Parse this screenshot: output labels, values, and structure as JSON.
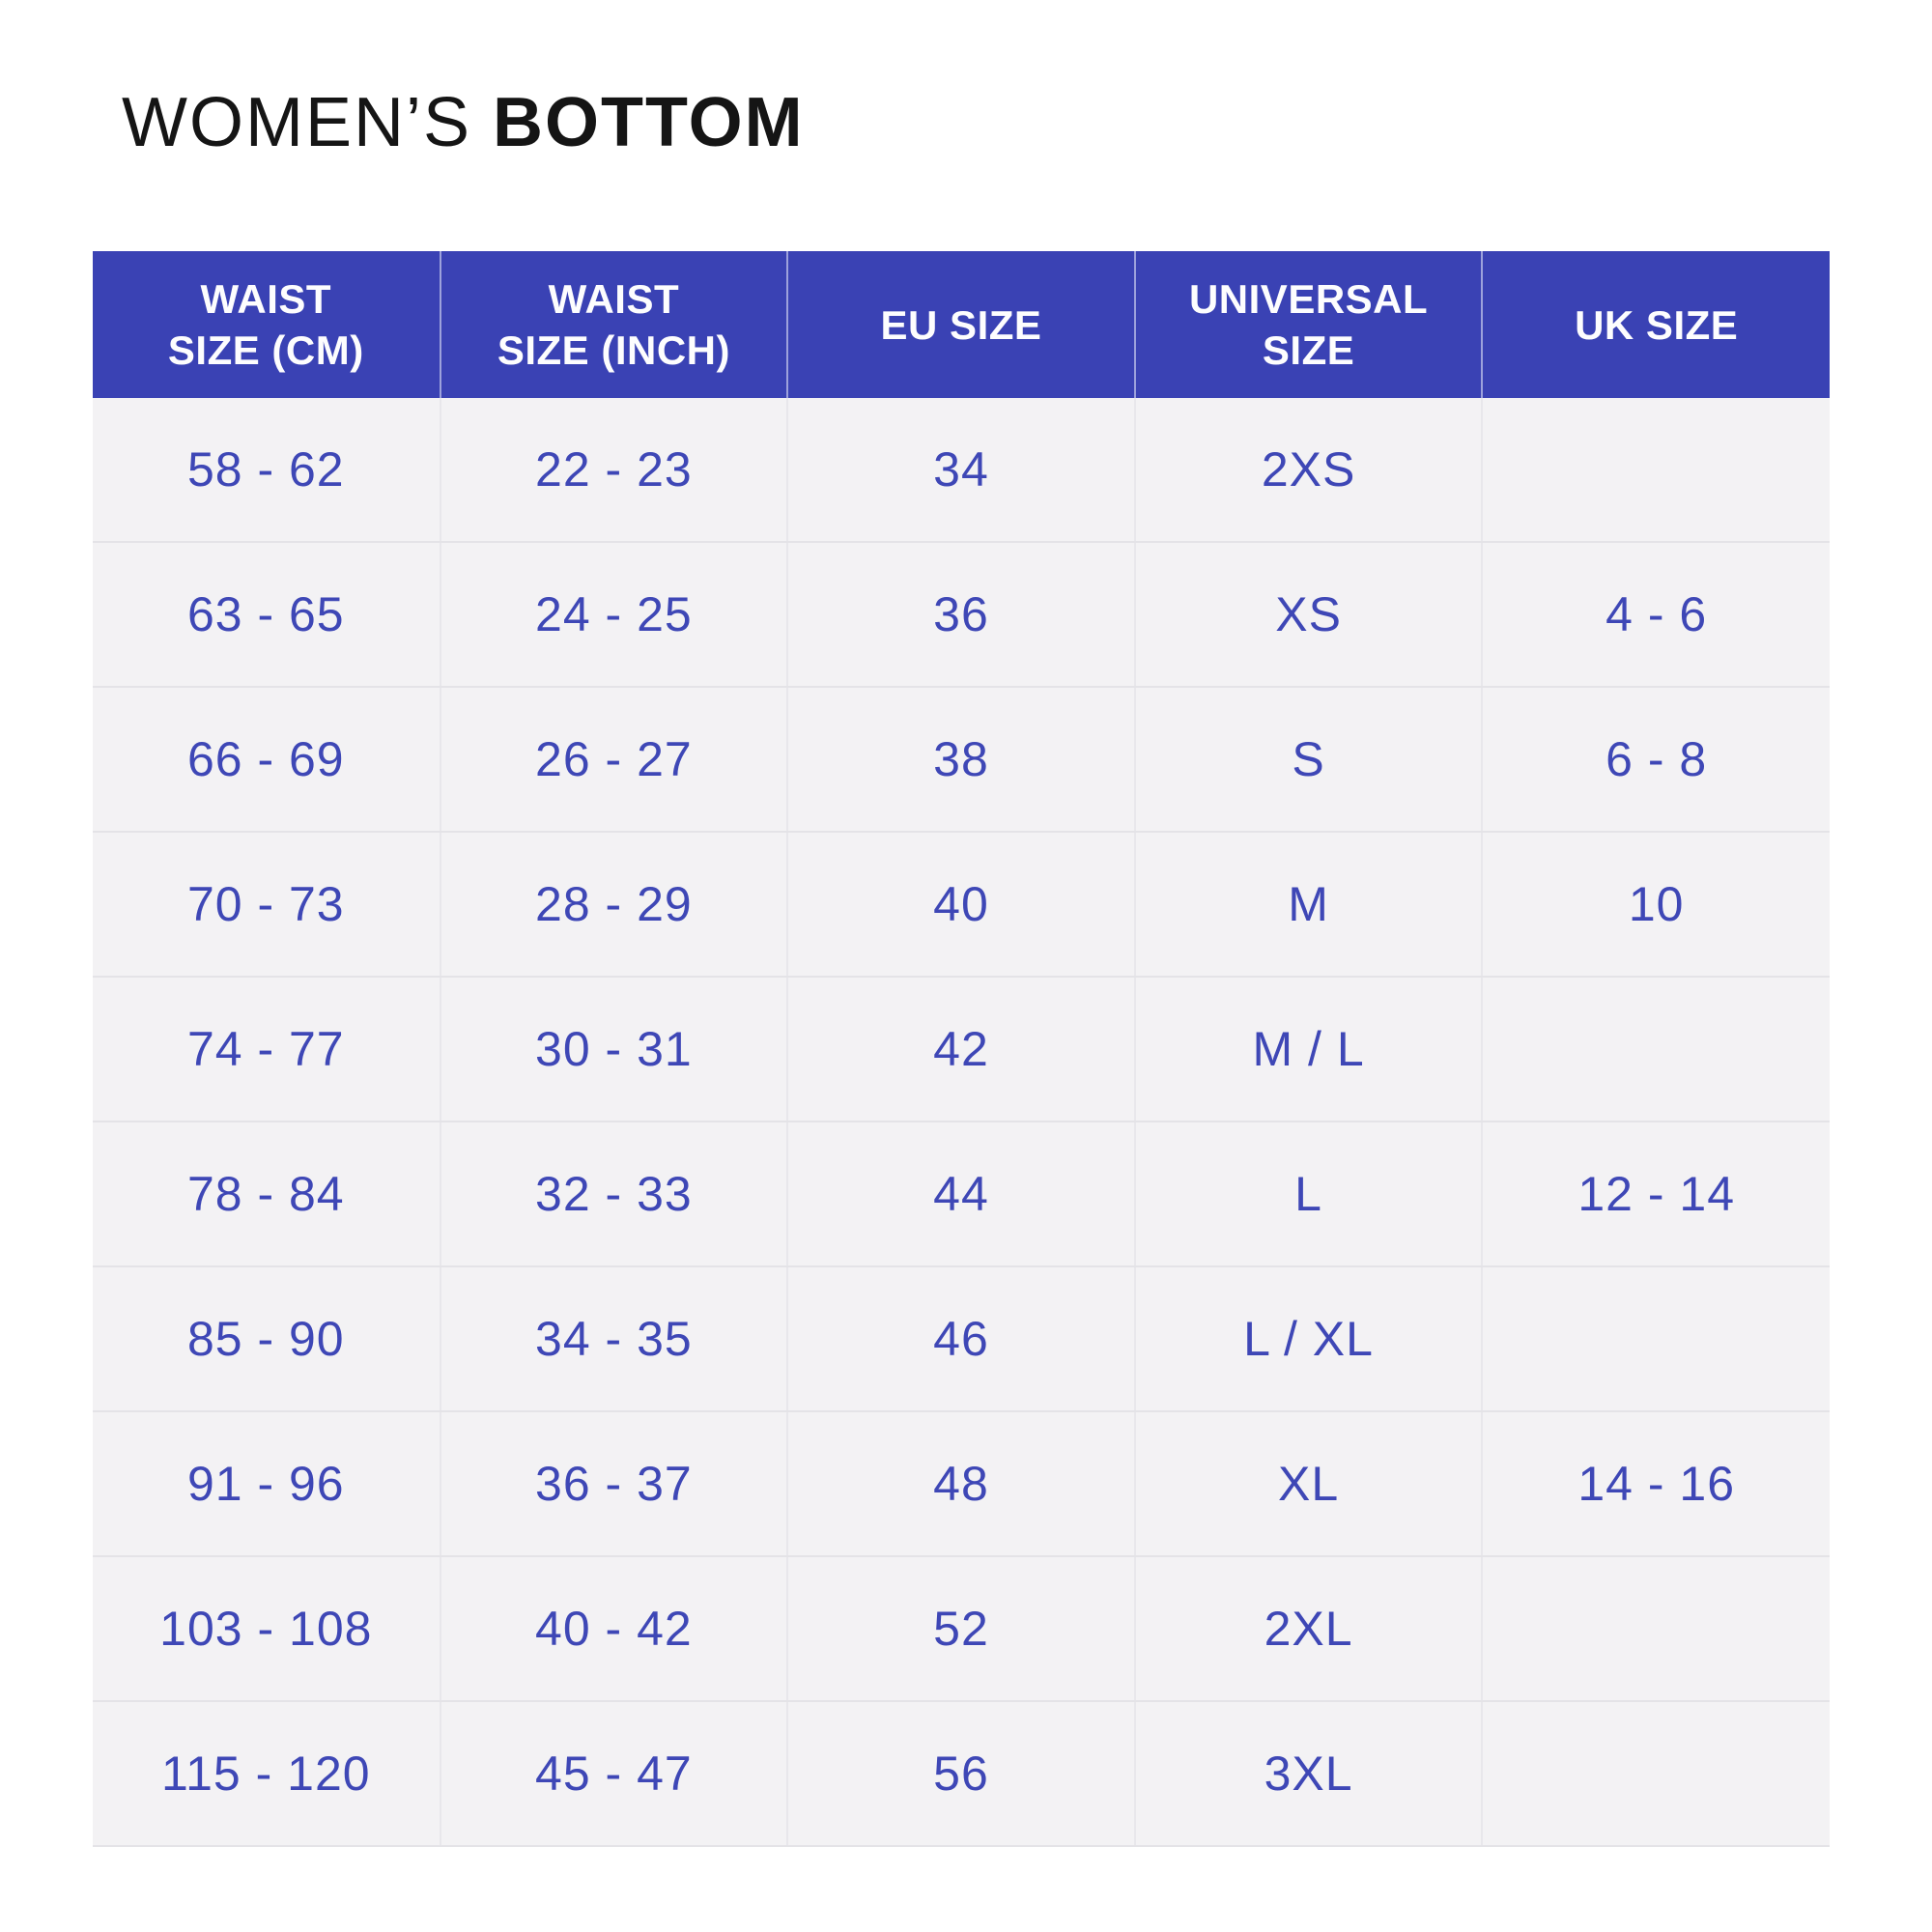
{
  "title": {
    "regular": "WOMEN’S",
    "bold": "BOTTOM"
  },
  "colors": {
    "page-bg": "#ffffff",
    "title-text": "#151515",
    "header-bg": "#3a42b4",
    "header-text": "#fdfdfe",
    "header-divider": "#9da2dc",
    "cell-bg": "#f3f2f4",
    "cell-text": "#3e47b6",
    "grid-vertical": "#e8e7eb",
    "grid-horizontal": "#e4e3e7"
  },
  "chart_data": {
    "type": "table",
    "title": "WOMEN’S BOTTOM",
    "columns": [
      "WAIST SIZE (CM)",
      "WAIST SIZE (INCH)",
      "EU SIZE",
      "UNIVERSAL SIZE",
      "UK SIZE"
    ],
    "header_lines": [
      "WAIST\nSIZE (CM)",
      "WAIST\nSIZE (INCH)",
      "EU SIZE",
      "UNIVERSAL\nSIZE",
      "UK SIZE"
    ],
    "rows": [
      [
        "58 - 62",
        "22 - 23",
        "34",
        "2XS",
        ""
      ],
      [
        "63 - 65",
        "24 - 25",
        "36",
        "XS",
        "4 - 6"
      ],
      [
        "66 - 69",
        "26 - 27",
        "38",
        "S",
        "6 - 8"
      ],
      [
        "70 - 73",
        "28 - 29",
        "40",
        "M",
        "10"
      ],
      [
        "74 - 77",
        "30 - 31",
        "42",
        "M / L",
        ""
      ],
      [
        "78 - 84",
        "32 - 33",
        "44",
        "L",
        "12 - 14"
      ],
      [
        "85 - 90",
        "34 - 35",
        "46",
        "L / XL",
        ""
      ],
      [
        "91 - 96",
        "36 - 37",
        "48",
        "XL",
        "14 - 16"
      ],
      [
        "103 - 108",
        "40 - 42",
        "52",
        "2XL",
        ""
      ],
      [
        "115 - 120",
        "45 - 47",
        "56",
        "3XL",
        ""
      ]
    ]
  }
}
